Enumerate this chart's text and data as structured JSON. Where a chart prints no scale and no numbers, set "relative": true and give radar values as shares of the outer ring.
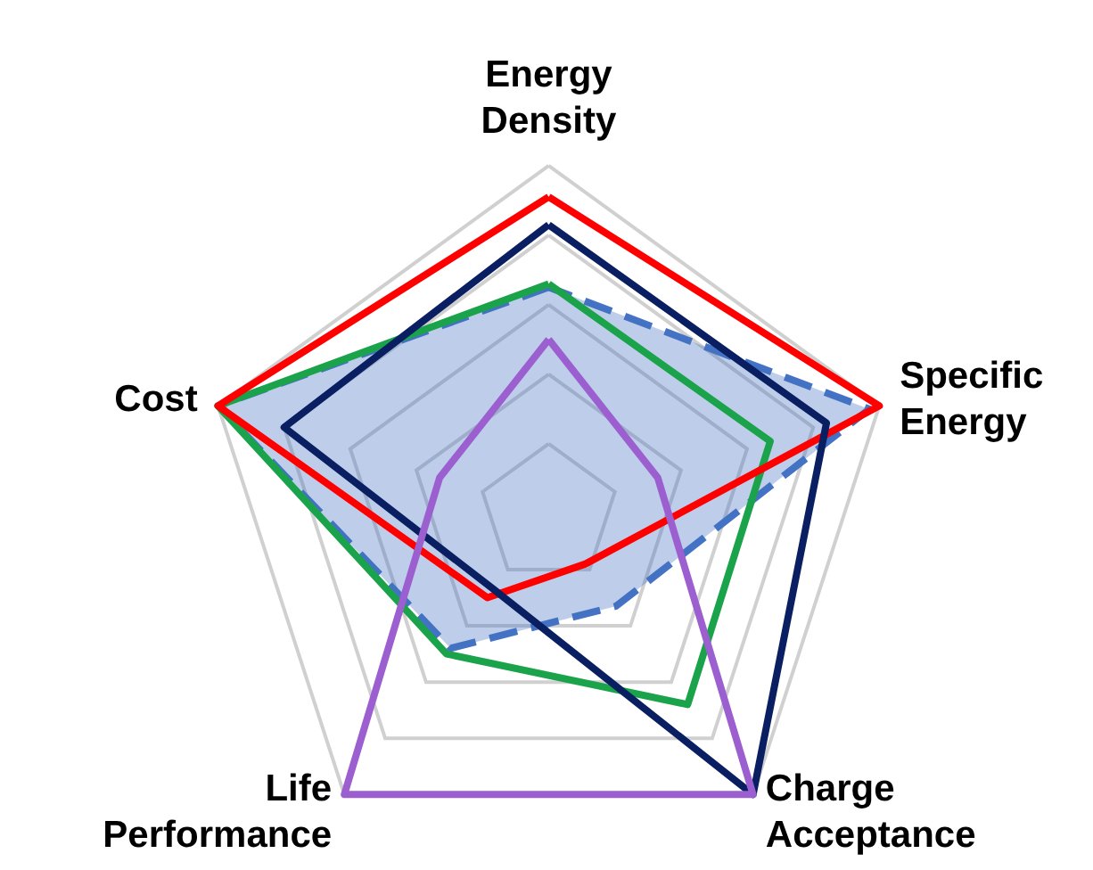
{
  "chart_data": {
    "type": "radar",
    "relative": true,
    "grid": true,
    "categories": [
      "Energy Density",
      "Specific Energy",
      "Charge Acceptance",
      "Life Performance",
      "Cost"
    ],
    "series": [
      {
        "type": "area",
        "color": "#4472c4",
        "line_style": "dashed",
        "values": [
          0.65,
          0.97,
          0.33,
          0.48,
          1.0
        ]
      },
      {
        "color": "#1aa34a",
        "line_style": "solid",
        "values": [
          0.66,
          0.67,
          0.68,
          0.5,
          1.0
        ]
      },
      {
        "color": "#ff0000",
        "line_style": "solid",
        "values": [
          0.91,
          1.0,
          0.18,
          0.3,
          1.0
        ]
      },
      {
        "color": "#0a1f62",
        "line_style": "solid",
        "values": [
          0.83,
          0.84,
          1.0,
          0.27,
          0.8
        ]
      },
      {
        "color": "#9c5fd0",
        "line_style": "solid",
        "values": [
          0.5,
          0.33,
          1.0,
          1.0,
          0.33
        ]
      }
    ]
  }
}
